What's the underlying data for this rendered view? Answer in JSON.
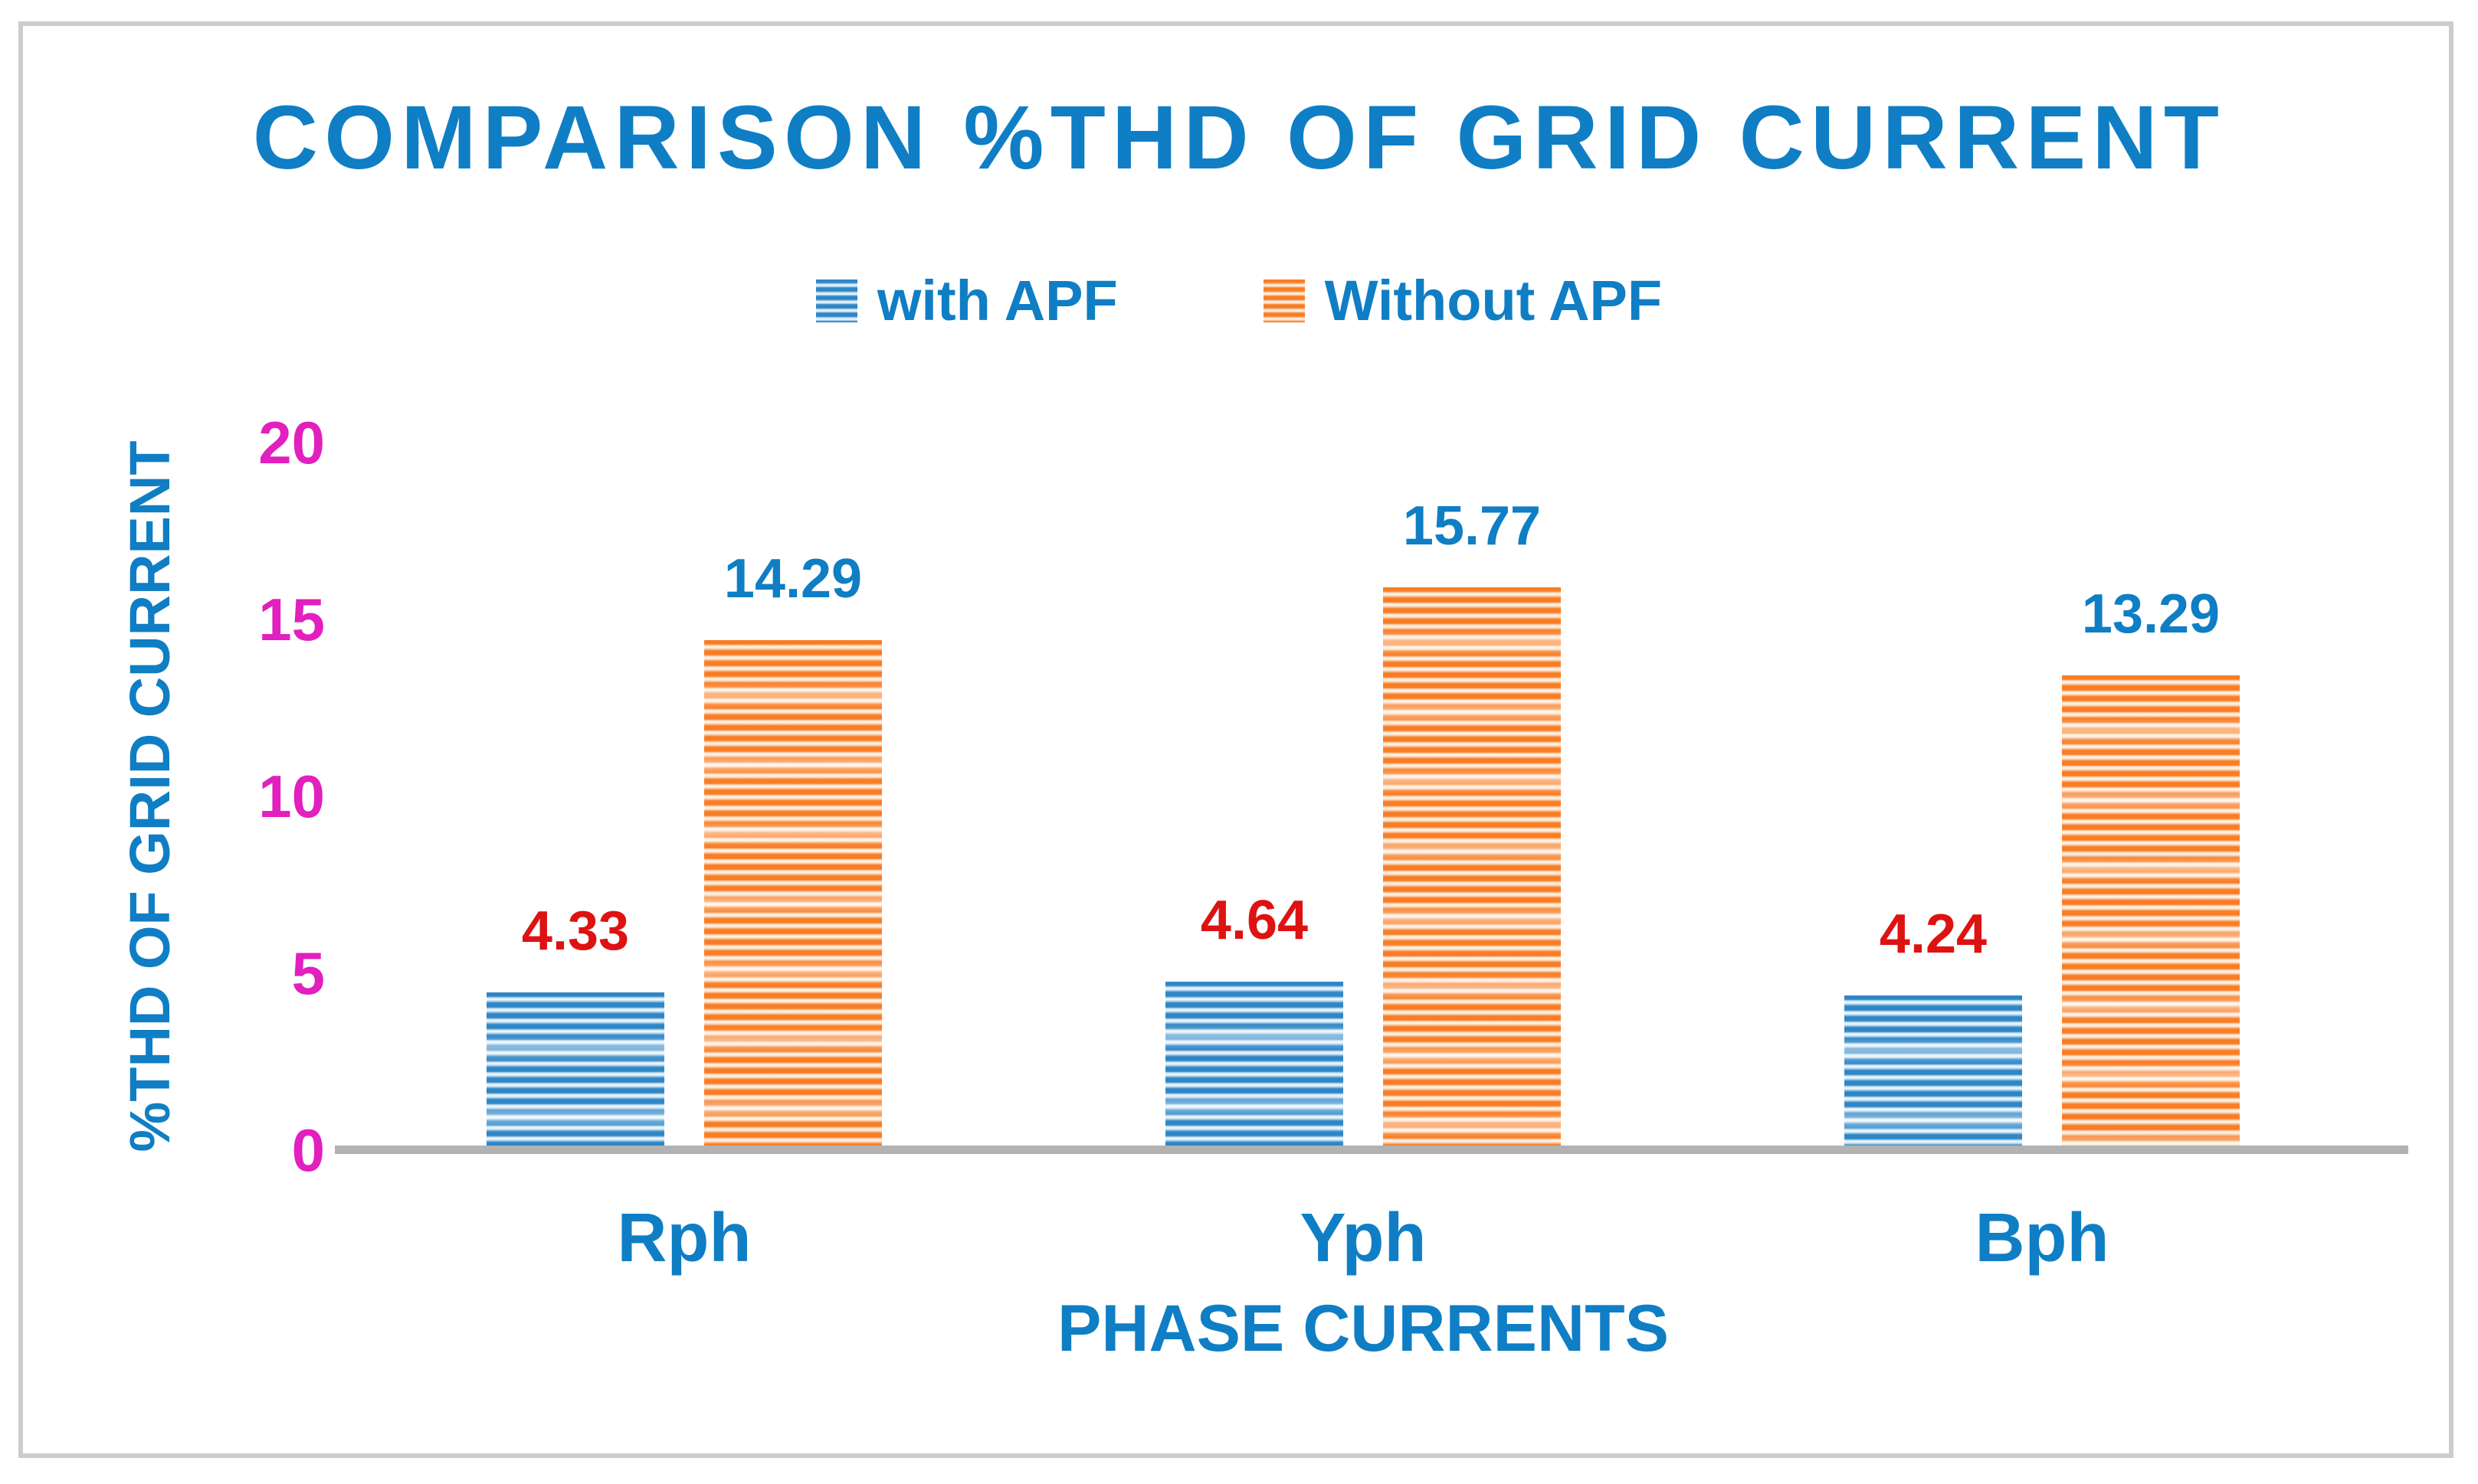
{
  "title": "COMPARISON %THD OF GRID CURRENT",
  "chart_data": {
    "type": "bar",
    "title": "COMPARISON %THD OF GRID CURRENT",
    "categories": [
      "Rph",
      "Yph",
      "Bph"
    ],
    "series": [
      {
        "name": "with APF",
        "values": [
          4.33,
          4.64,
          4.24
        ],
        "color": "#2E86C6",
        "value_label_color": "#DE1212",
        "pattern": "horizontal-stripes"
      },
      {
        "name": "Without APF",
        "values": [
          14.29,
          15.77,
          13.29
        ],
        "color": "#F87D25",
        "value_label_color": "#0F7EC4",
        "pattern": "horizontal-stripes"
      }
    ],
    "xlabel": "PHASE CURRENTS",
    "ylabel": "%THD OF GRID CURRENT",
    "ylim": [
      0,
      20
    ],
    "yticks": [
      0,
      5,
      10,
      15,
      20
    ],
    "legend_position": "top-center",
    "grid": false,
    "data_labels_visible": true
  },
  "colors": {
    "title_text": "#0F7EC4",
    "axis_title_text": "#0F7EC4",
    "x_tick_text": "#0F7EC4",
    "y_tick_text": "#E21FBF",
    "axis_line": "#B2B2B2",
    "frame_border": "#CACCCD",
    "background": "#FFFFFF"
  }
}
